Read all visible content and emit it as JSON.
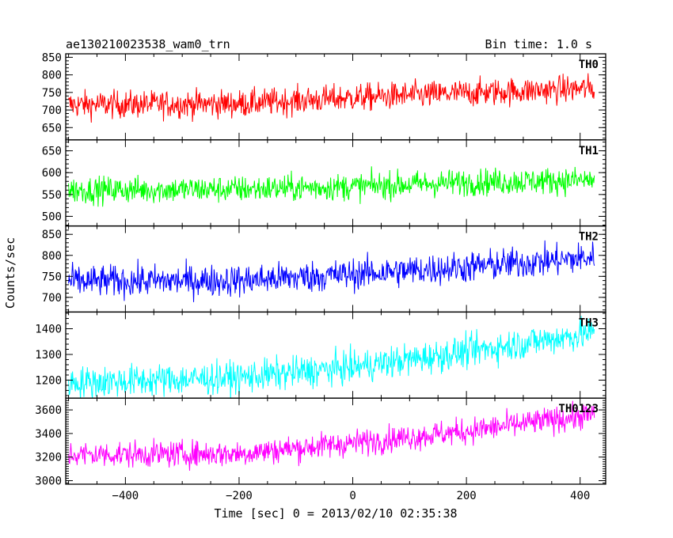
{
  "chart_data": {
    "type": "line",
    "title": "ae130210023538_wam0_trn",
    "bin_time": "Bin time: 1.0 s",
    "xlabel": "Time [sec] 0 = 2013/02/10 02:35:38",
    "ylabel": "Counts/sec",
    "xlim": [
      -505,
      445
    ],
    "x_range": [
      -500,
      425
    ],
    "x_ticks": [
      -400,
      -200,
      0,
      200,
      400
    ],
    "x_tick_labels": [
      "−400",
      "−200",
      "0",
      "200",
      "400"
    ],
    "panels": [
      {
        "name": "TH0",
        "color": "#ff0000",
        "ylim": [
          615,
          860
        ],
        "y_ticks": [
          650,
          700,
          750,
          800,
          850
        ],
        "trend": [
          [
            -500,
            715
          ],
          [
            -200,
            718
          ],
          [
            0,
            735
          ],
          [
            200,
            748
          ],
          [
            425,
            762
          ]
        ],
        "noise": 28
      },
      {
        "name": "TH1",
        "color": "#00ff00",
        "ylim": [
          478,
          675
        ],
        "y_ticks": [
          500,
          550,
          600,
          650
        ],
        "trend": [
          [
            -500,
            560
          ],
          [
            -200,
            562
          ],
          [
            0,
            568
          ],
          [
            200,
            578
          ],
          [
            425,
            583
          ]
        ],
        "noise": 22
      },
      {
        "name": "TH2",
        "color": "#0000ff",
        "ylim": [
          665,
          870
        ],
        "y_ticks": [
          700,
          750,
          800,
          850
        ],
        "trend": [
          [
            -500,
            738
          ],
          [
            -200,
            740
          ],
          [
            0,
            755
          ],
          [
            200,
            772
          ],
          [
            425,
            795
          ]
        ],
        "noise": 27
      },
      {
        "name": "TH3",
        "color": "#00ffff",
        "ylim": [
          1130,
          1465
        ],
        "y_ticks": [
          1200,
          1300,
          1400
        ],
        "trend": [
          [
            -500,
            1190
          ],
          [
            -200,
            1210
          ],
          [
            0,
            1250
          ],
          [
            200,
            1310
          ],
          [
            425,
            1385
          ]
        ],
        "noise": 45
      },
      {
        "name": "TH0123",
        "color": "#ff00ff",
        "ylim": [
          2970,
          3700
        ],
        "y_ticks": [
          3000,
          3200,
          3400,
          3600
        ],
        "trend": [
          [
            -500,
            3220
          ],
          [
            -200,
            3230
          ],
          [
            0,
            3320
          ],
          [
            200,
            3420
          ],
          [
            425,
            3560
          ]
        ],
        "noise": 80
      }
    ]
  }
}
